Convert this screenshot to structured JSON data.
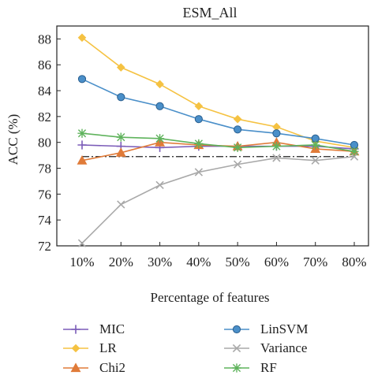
{
  "chart_data": {
    "type": "line",
    "title": "ESM_All",
    "xlabel": "Percentage of features",
    "ylabel": "ACC (%)",
    "categories": [
      "10%",
      "20%",
      "30%",
      "40%",
      "50%",
      "60%",
      "70%",
      "80%"
    ],
    "ylim": [
      72,
      89
    ],
    "yticks": [
      72,
      74,
      76,
      78,
      80,
      82,
      84,
      86,
      88
    ],
    "grid": false,
    "legend_position": "bottom",
    "baseline": {
      "value": 78.9,
      "style": "dash-dot",
      "color": "#222222"
    },
    "series": [
      {
        "name": "MIC",
        "color": "#7b5cb8",
        "marker": "plus",
        "values": [
          79.8,
          79.7,
          79.6,
          79.7,
          79.7,
          79.7,
          79.7,
          79.5
        ]
      },
      {
        "name": "LR",
        "color": "#f5c242",
        "marker": "diamond",
        "values": [
          88.1,
          85.8,
          84.5,
          82.8,
          81.8,
          81.2,
          80.1,
          79.6
        ]
      },
      {
        "name": "Chi2",
        "color": "#e07b39",
        "marker": "triangle",
        "values": [
          78.6,
          79.2,
          80.0,
          79.8,
          79.7,
          80.0,
          79.5,
          79.3
        ]
      },
      {
        "name": "LinSVM",
        "color": "#4a8fc9",
        "marker": "circle",
        "values": [
          84.9,
          83.5,
          82.8,
          81.8,
          81.0,
          80.7,
          80.3,
          79.8
        ]
      },
      {
        "name": "Variance",
        "color": "#a9a9a9",
        "marker": "x",
        "values": [
          72.2,
          75.2,
          76.7,
          77.7,
          78.3,
          78.8,
          78.6,
          78.9
        ]
      },
      {
        "name": "RF",
        "color": "#5fb35c",
        "marker": "star",
        "values": [
          80.7,
          80.4,
          80.3,
          79.9,
          79.6,
          79.7,
          79.8,
          79.3
        ]
      }
    ]
  }
}
